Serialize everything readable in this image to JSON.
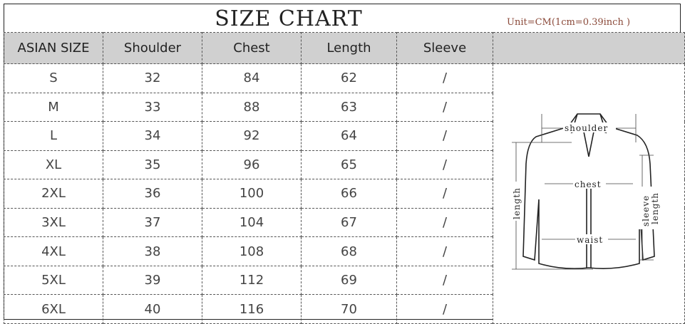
{
  "title": "SIZE CHART",
  "unit_note": "Unit=CM(1cm=0.39inch )",
  "headers": [
    "ASIAN SIZE",
    "Shoulder",
    "Chest",
    "Length",
    "Sleeve",
    ""
  ],
  "rows": [
    [
      "S",
      "32",
      "84",
      "62",
      "/"
    ],
    [
      "M",
      "33",
      "88",
      "63",
      "/"
    ],
    [
      "L",
      "34",
      "92",
      "64",
      "/"
    ],
    [
      "XL",
      "35",
      "96",
      "65",
      "/"
    ],
    [
      "2XL",
      "36",
      "100",
      "66",
      "/"
    ],
    [
      "3XL",
      "37",
      "104",
      "67",
      "/"
    ],
    [
      "4XL",
      "38",
      "108",
      "68",
      "/"
    ],
    [
      "5XL",
      "39",
      "112",
      "69",
      "/"
    ],
    [
      "6XL",
      "40",
      "116",
      "70",
      "/"
    ]
  ],
  "diagram": {
    "shoulder": "shoulder",
    "chest": "chest",
    "waist": "waist",
    "length": "length",
    "sleeve": "sleeve",
    "sleeve_length": "length"
  }
}
